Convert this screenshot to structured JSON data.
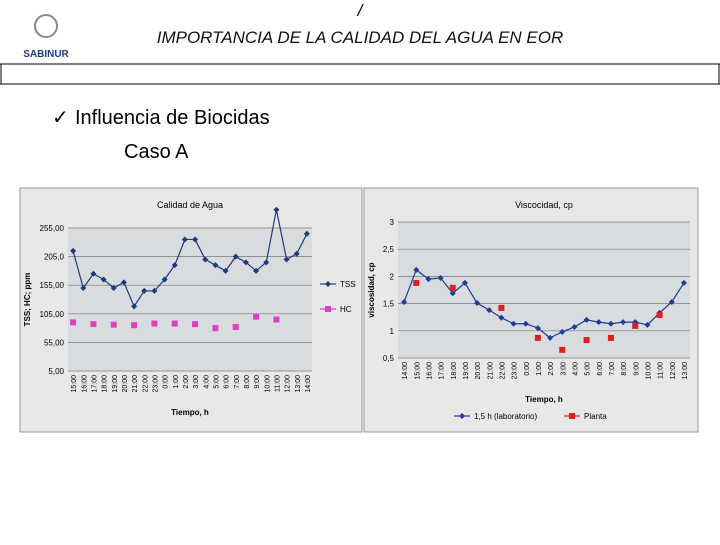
{
  "header": {
    "mark": "/",
    "title": "IMPORTANCIA DE LA CALIDAD DEL AGUA EN EOR",
    "logo": "SABINUR"
  },
  "bullet": {
    "check": "✓",
    "text": "Influencia de Biocidas",
    "sub": "Caso A"
  },
  "chart_data": [
    {
      "type": "line",
      "title": "Calidad de Agua",
      "x_label": "Tiempo, h",
      "y_label": "TSS; HC; ppm",
      "legend": "right",
      "categories": [
        "15:00",
        "16:00",
        "17:00",
        "18:00",
        "19:00",
        "20:00",
        "21:00",
        "22:00",
        "23:00",
        "0:00",
        "1:00",
        "2:00",
        "3:00",
        "4:00",
        "5:00",
        "6:00",
        "7:00",
        "8:00",
        "9:00",
        "10:00",
        "11:00",
        "12:00",
        "13:00",
        "14:00"
      ],
      "ylim": [
        5,
        255
      ],
      "yticks": [
        {
          "value": 5,
          "label": "5,00"
        },
        {
          "value": 55,
          "label": "55,00"
        },
        {
          "value": 105,
          "label": "105,00"
        },
        {
          "value": 155,
          "label": "155,00"
        },
        {
          "value": 205,
          "label": "205,0"
        },
        {
          "value": 255,
          "label": "255,00"
        }
      ],
      "grid": true,
      "series": [
        {
          "name": "TSS",
          "color": "#1f3a7a",
          "marker": "diamond",
          "values": [
            215,
            150,
            175,
            165,
            150,
            160,
            118,
            145,
            145,
            165,
            190,
            235,
            235,
            200,
            190,
            180,
            205,
            195,
            180,
            195,
            287,
            200,
            210,
            245
          ]
        },
        {
          "name": "HC",
          "color": "#e040c0",
          "marker": "square",
          "values": [
            90,
            null,
            87,
            null,
            86,
            null,
            85,
            null,
            88,
            null,
            88,
            null,
            87,
            null,
            80,
            null,
            82,
            null,
            100,
            null,
            95,
            null,
            null,
            null
          ]
        }
      ]
    },
    {
      "type": "line",
      "title": "Viscocidad, cp",
      "x_label": "Tiempo, h",
      "y_label": "viscosidad, cp",
      "legend": "bottom",
      "categories": [
        "14:00",
        "15:00",
        "16:00",
        "17:00",
        "18:00",
        "19:00",
        "20:00",
        "21:00",
        "22:00",
        "23:00",
        "0:00",
        "1:00",
        "2:00",
        "3:00",
        "4:00",
        "5:00",
        "6:00",
        "7:00",
        "8:00",
        "9:00",
        "10:00",
        "11:00",
        "12:00",
        "13:00"
      ],
      "ylim": [
        0.5,
        3
      ],
      "yticks": [
        {
          "value": 0.5,
          "label": "0,5"
        },
        1,
        {
          "value": 1.5,
          "label": "1,5"
        },
        2,
        {
          "value": 2.5,
          "label": "2,5"
        },
        3
      ],
      "grid": true,
      "series": [
        {
          "name": "1,5 h (laboratorio)",
          "color": "#1f3a9a",
          "marker": "diamond",
          "values": [
            1.53,
            2.12,
            1.95,
            1.97,
            1.69,
            1.88,
            1.51,
            1.38,
            1.24,
            1.13,
            1.13,
            1.05,
            0.87,
            0.98,
            1.07,
            1.2,
            1.16,
            1.13,
            1.16,
            1.16,
            1.11,
            1.33,
            1.53,
            1.88
          ]
        },
        {
          "name": "Planta",
          "color": "#e02020",
          "marker": "square",
          "values": [
            null,
            1.88,
            null,
            null,
            1.79,
            null,
            null,
            null,
            1.42,
            null,
            null,
            0.87,
            null,
            0.65,
            null,
            0.83,
            null,
            0.87,
            null,
            1.09,
            null,
            1.29,
            null,
            null
          ]
        }
      ]
    }
  ]
}
